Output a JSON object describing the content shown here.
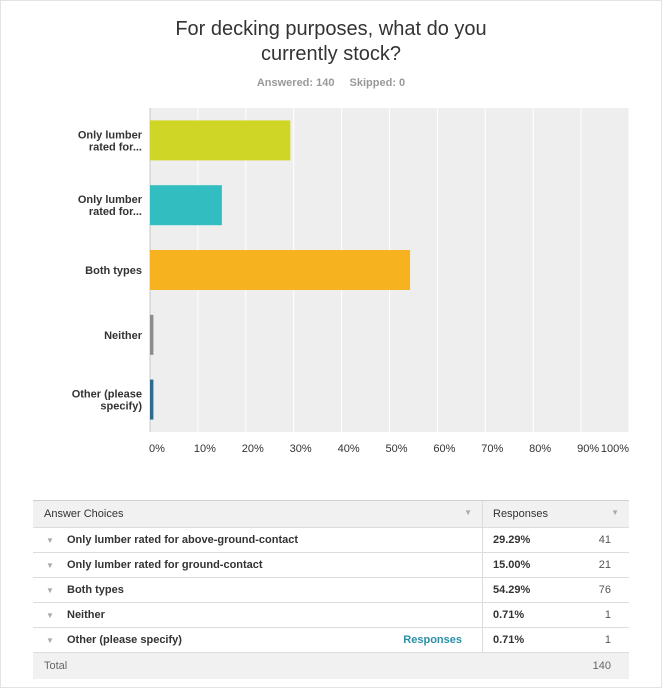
{
  "question": {
    "title_line1": "For decking purposes, what do you",
    "title_line2": "currently stock?",
    "answered": "Answered: 140",
    "skipped": "Skipped: 0"
  },
  "chart_data": {
    "type": "bar",
    "orientation": "horizontal",
    "categories": [
      [
        "Only lumber",
        "rated for..."
      ],
      [
        "Only lumber",
        "rated for..."
      ],
      [
        "Both types"
      ],
      [
        "Neither"
      ],
      [
        "Other (please",
        "specify)"
      ]
    ],
    "values": [
      29.29,
      15.0,
      54.29,
      0.71,
      0.71
    ],
    "colors": [
      "#d0d626",
      "#32bec0",
      "#f7b220",
      "#8c8c8c",
      "#2f6b8a"
    ],
    "xlim": [
      0,
      100
    ],
    "xticks": [
      "0%",
      "10%",
      "20%",
      "30%",
      "40%",
      "50%",
      "60%",
      "70%",
      "80%",
      "90%",
      "100%"
    ],
    "grid": true,
    "background": "#eeeeee"
  },
  "table": {
    "header_choice": "Answer Choices",
    "header_responses": "Responses",
    "rows": [
      {
        "choice": "Only lumber rated for above-ground-contact",
        "link": "",
        "pct": "29.29%",
        "count": "41"
      },
      {
        "choice": "Only lumber rated for ground-contact",
        "link": "",
        "pct": "15.00%",
        "count": "21"
      },
      {
        "choice": "Both types",
        "link": "",
        "pct": "54.29%",
        "count": "76"
      },
      {
        "choice": "Neither",
        "link": "",
        "pct": "0.71%",
        "count": "1"
      },
      {
        "choice": "Other (please specify)",
        "link": "Responses",
        "pct": "0.71%",
        "count": "1"
      }
    ],
    "total_label": "Total",
    "total_count": "140"
  }
}
